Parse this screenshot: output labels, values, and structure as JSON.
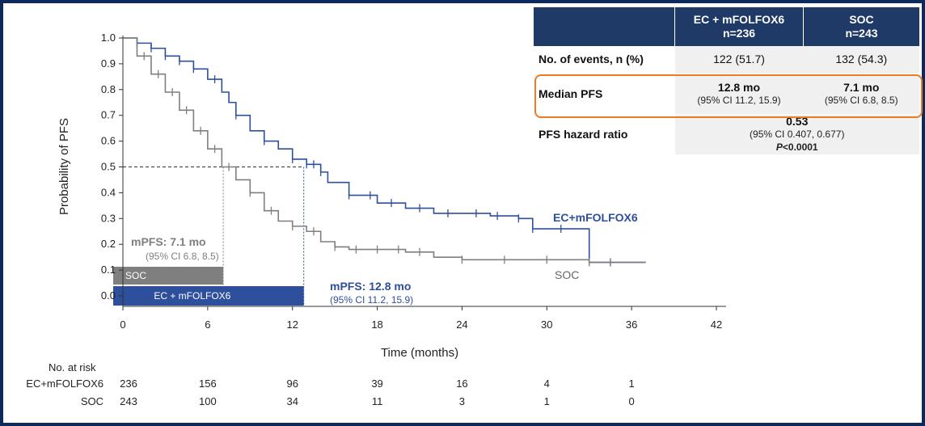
{
  "colors": {
    "ec": "#2e4f9c",
    "soc": "#7f7f7f",
    "header_bg": "#1f3a66",
    "highlight": "#ee7b22",
    "soc_bar": "#7f7f7f",
    "ec_bar": "#2e4f9c"
  },
  "table": {
    "headers": [
      "EC + mFOLFOX6",
      "n=236",
      "SOC",
      "n=243"
    ],
    "rows": [
      {
        "label": "No. of events, n (%)",
        "ec": "122 (51.7)",
        "soc": "132 (54.3)"
      },
      {
        "label": "Median PFS",
        "ec": "12.8 mo",
        "ec_ci": "(95% CI 11.2, 15.9)",
        "soc": "7.1 mo",
        "soc_ci": "(95% CI 6.8, 8.5)"
      },
      {
        "label": "PFS hazard ratio",
        "value": "0.53",
        "ci": "(95% CI 0.407, 0.677)",
        "p_label": "P",
        "p_value": "<0.0001"
      }
    ]
  },
  "chart_data": {
    "type": "line",
    "ylabel": "Probability of PFS",
    "xlabel": "Time (months)",
    "xlim": [
      0,
      42
    ],
    "ylim": [
      0,
      1
    ],
    "xticks": [
      0,
      6,
      12,
      18,
      24,
      30,
      36,
      42
    ],
    "yticks": [
      0.0,
      0.1,
      0.2,
      0.3,
      0.4,
      0.5,
      0.6,
      0.7,
      0.8,
      0.9,
      1.0
    ],
    "ytick_labels": [
      "0.0",
      "0.1",
      "0.2",
      "0.3",
      "0.4",
      "0.5",
      "0.6",
      "0.7",
      "0.8",
      "0.9",
      "1.0"
    ],
    "median_reference": 0.5,
    "series": [
      {
        "name": "EC+mFOLFOX6",
        "color": "#2e4f9c",
        "median": 12.8,
        "x": [
          0,
          1,
          2,
          3,
          4,
          5,
          6,
          7,
          7.5,
          8,
          9,
          10,
          11,
          12,
          13,
          14,
          14.5,
          16,
          18,
          20,
          22,
          24,
          26,
          28,
          29,
          30,
          33,
          37
        ],
        "y": [
          1.0,
          0.98,
          0.96,
          0.93,
          0.91,
          0.88,
          0.84,
          0.79,
          0.75,
          0.7,
          0.64,
          0.6,
          0.57,
          0.53,
          0.51,
          0.48,
          0.44,
          0.39,
          0.36,
          0.34,
          0.32,
          0.32,
          0.31,
          0.3,
          0.26,
          0.26,
          0.13,
          0.13
        ],
        "censor_x": [
          1,
          2,
          3,
          4,
          5,
          6.5,
          8,
          10,
          12,
          13,
          13.5,
          14,
          16,
          17.5,
          19,
          21,
          23,
          25,
          26.5,
          28,
          29,
          31,
          34.5
        ]
      },
      {
        "name": "SOC",
        "color": "#7f7f7f",
        "median": 7.1,
        "x": [
          0,
          1,
          2,
          3,
          4,
          5,
          6,
          7,
          8,
          9,
          10,
          11,
          12,
          13,
          14,
          15,
          16,
          18,
          20,
          22,
          24,
          27,
          30,
          33,
          37
        ],
        "y": [
          1.0,
          0.93,
          0.86,
          0.79,
          0.72,
          0.64,
          0.57,
          0.5,
          0.45,
          0.4,
          0.33,
          0.29,
          0.27,
          0.25,
          0.21,
          0.19,
          0.18,
          0.18,
          0.17,
          0.15,
          0.14,
          0.14,
          0.14,
          0.13,
          0.13
        ],
        "censor_x": [
          1.5,
          2.5,
          3.5,
          4.5,
          5.5,
          6.5,
          7.5,
          9,
          10.5,
          12,
          13.5,
          15,
          16.5,
          18,
          19.5,
          21,
          24,
          27,
          30,
          33,
          34.5
        ]
      }
    ],
    "annotations": [
      {
        "series": "SOC",
        "label": "mPFS: 7.1 mo",
        "ci": "(95% CI 6.8, 8.5)",
        "bar_label": "SOC"
      },
      {
        "series": "EC+mFOLFOX6",
        "label": "mPFS: 12.8 mo",
        "ci": "(95% CI 11.2, 15.9)",
        "bar_label": "EC + mFOLFOX6"
      }
    ],
    "series_labels": {
      "ec": "EC+mFOLFOX6",
      "soc": "SOC"
    },
    "risk_table": {
      "title": "No. at risk",
      "rows": [
        {
          "label": "EC+mFOLFOX6",
          "values": [
            236,
            156,
            96,
            39,
            16,
            4,
            1
          ]
        },
        {
          "label": "SOC",
          "values": [
            243,
            100,
            34,
            11,
            3,
            1,
            0
          ]
        }
      ]
    }
  }
}
